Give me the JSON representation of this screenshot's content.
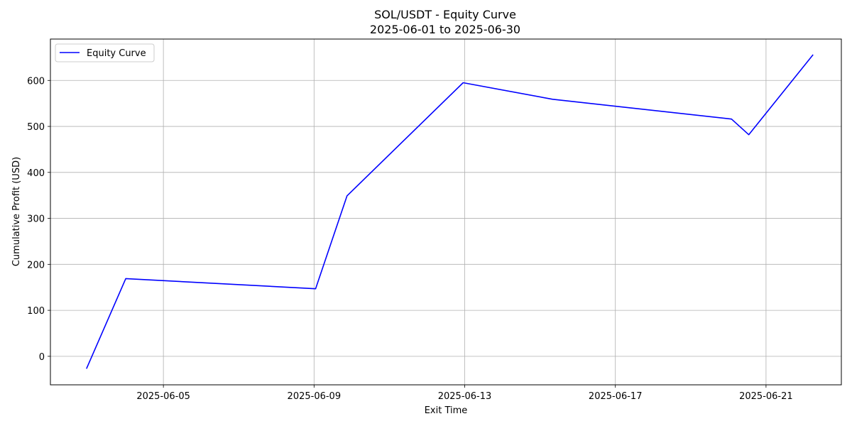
{
  "chart_data": {
    "type": "line",
    "title": "SOL/USDT - Equity Curve",
    "subtitle": "2025-06-01 to 2025-06-30",
    "xlabel": "Exit Time",
    "ylabel": "Cumulative Profit (USD)",
    "x_type": "date",
    "xlim": [
      "2025-06-02T00:00",
      "2025-06-23T00:00"
    ],
    "ylim": [
      -62,
      690
    ],
    "x_ticks": [
      "2025-06-05",
      "2025-06-09",
      "2025-06-13",
      "2025-06-17",
      "2025-06-21"
    ],
    "y_ticks": [
      0,
      100,
      200,
      300,
      400,
      500,
      600
    ],
    "grid": true,
    "legend_position": "upper-left",
    "series": [
      {
        "name": "Equity Curve",
        "color": "#0000ff",
        "points": [
          {
            "x": "2025-06-02T23:00",
            "y": -27
          },
          {
            "x": "2025-06-04T00:00",
            "y": 169
          },
          {
            "x": "2025-06-09T01:00",
            "y": 147
          },
          {
            "x": "2025-06-09T21:00",
            "y": 349
          },
          {
            "x": "2025-06-12T23:00",
            "y": 595
          },
          {
            "x": "2025-06-15T08:00",
            "y": 559
          },
          {
            "x": "2025-06-20T02:00",
            "y": 516
          },
          {
            "x": "2025-06-20T13:00",
            "y": 482
          },
          {
            "x": "2025-06-22T06:00",
            "y": 656
          }
        ]
      }
    ]
  }
}
